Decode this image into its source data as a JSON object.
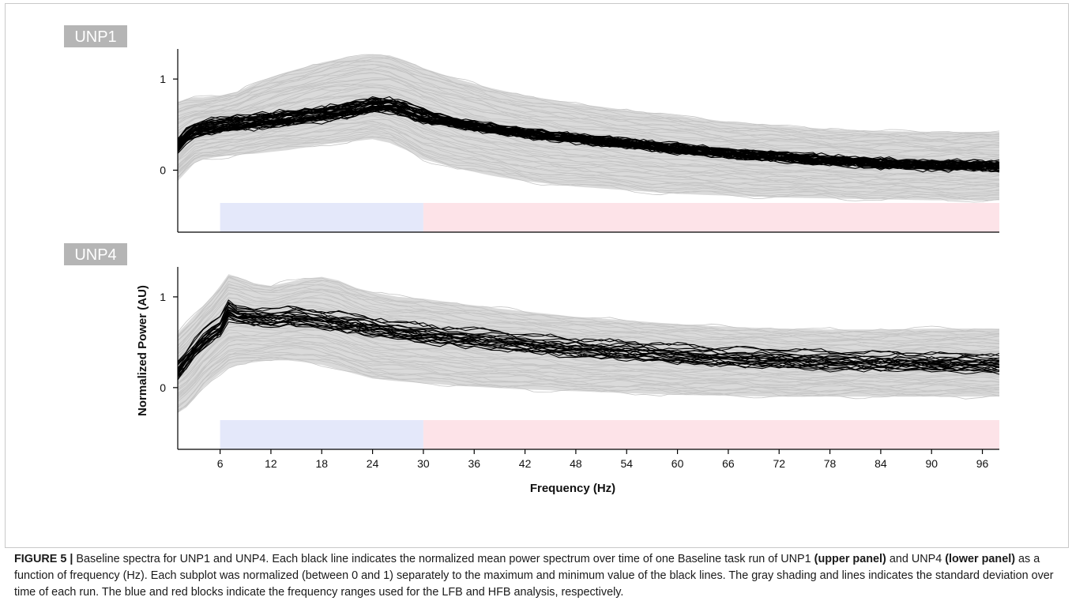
{
  "figure": {
    "panels": [
      "UNP1",
      "UNP4"
    ]
  },
  "caption": {
    "label": "FIGURE 5 |",
    "t1": " Baseline spectra for UNP1 and UNP4. Each black line indicates the normalized mean power spectrum over time of one Baseline task run of UNP1 ",
    "b1": "(upper panel)",
    "t2": " and UNP4 ",
    "b2": "(lower panel)",
    "t3": " as a function of frequency (Hz). Each subplot was normalized (between 0 and 1) separately to the maximum and minimum value of the black lines. The gray shading and lines indicates the standard deviation over time of each run. The blue and red blocks indicate the frequency ranges used for the LFB and HFB analysis, respectively."
  },
  "chart_data": [
    {
      "type": "line",
      "panel_label": "UNP1",
      "xlabel": "",
      "ylabel": "",
      "xlim": [
        1,
        98
      ],
      "ylim": [
        -0.68,
        1.33
      ],
      "yticks": [
        0,
        1
      ],
      "ytick_labels": [
        "0",
        "1"
      ],
      "band_colors": {
        "lfb": "#e4e8fa",
        "hfb": "#fde3e8"
      },
      "bands": [
        {
          "name": "LFB",
          "from": 6,
          "to": 30,
          "color": "#e4e8fa"
        },
        {
          "name": "HFB",
          "from": 30,
          "to": 98,
          "color": "#fde3e8"
        }
      ],
      "run_count": 40,
      "mean_curve": {
        "x": [
          1,
          2,
          3,
          4,
          6,
          8,
          10,
          12,
          14,
          16,
          18,
          20,
          22,
          24,
          26,
          28,
          30,
          34,
          38,
          42,
          48,
          54,
          60,
          66,
          72,
          78,
          84,
          90,
          98
        ],
        "y": [
          0.28,
          0.38,
          0.44,
          0.47,
          0.5,
          0.52,
          0.54,
          0.56,
          0.58,
          0.6,
          0.62,
          0.65,
          0.68,
          0.72,
          0.72,
          0.67,
          0.6,
          0.52,
          0.46,
          0.41,
          0.35,
          0.3,
          0.24,
          0.19,
          0.15,
          0.11,
          0.08,
          0.06,
          0.05
        ]
      },
      "band_sd": {
        "x": [
          1,
          2,
          3,
          4,
          6,
          8,
          10,
          12,
          14,
          16,
          18,
          20,
          22,
          24,
          26,
          28,
          30,
          34,
          38,
          42,
          48,
          54,
          60,
          66,
          72,
          78,
          84,
          90,
          98
        ],
        "upper": [
          0.75,
          0.78,
          0.8,
          0.8,
          0.82,
          0.86,
          0.95,
          1.02,
          1.08,
          1.13,
          1.18,
          1.22,
          1.25,
          1.27,
          1.26,
          1.2,
          1.12,
          1.0,
          0.9,
          0.82,
          0.73,
          0.66,
          0.6,
          0.53,
          0.49,
          0.45,
          0.43,
          0.42,
          0.42
        ],
        "lower": [
          -0.12,
          -0.02,
          0.08,
          0.12,
          0.15,
          0.17,
          0.18,
          0.2,
          0.22,
          0.25,
          0.28,
          0.3,
          0.32,
          0.34,
          0.3,
          0.22,
          0.12,
          0.02,
          -0.06,
          -0.12,
          -0.18,
          -0.22,
          -0.26,
          -0.28,
          -0.3,
          -0.31,
          -0.32,
          -0.33,
          -0.33
        ]
      }
    },
    {
      "type": "line",
      "panel_label": "UNP4",
      "xlabel": "Frequency (Hz)",
      "ylabel": "Normalized Power (AU)",
      "xlim": [
        1,
        98
      ],
      "ylim": [
        -0.68,
        1.33
      ],
      "yticks": [
        0,
        1
      ],
      "ytick_labels": [
        "0",
        "1"
      ],
      "xticks": [
        6,
        12,
        18,
        24,
        30,
        36,
        42,
        48,
        54,
        60,
        66,
        72,
        78,
        84,
        90,
        96
      ],
      "xtick_labels": [
        "6",
        "12",
        "18",
        "24",
        "30",
        "36",
        "42",
        "48",
        "54",
        "60",
        "66",
        "72",
        "78",
        "84",
        "90",
        "96"
      ],
      "band_colors": {
        "lfb": "#e4e8fa",
        "hfb": "#fde3e8"
      },
      "bands": [
        {
          "name": "LFB",
          "from": 6,
          "to": 30,
          "color": "#e4e8fa"
        },
        {
          "name": "HFB",
          "from": 30,
          "to": 98,
          "color": "#fde3e8"
        }
      ],
      "run_count": 22,
      "mean_curve": {
        "x": [
          1,
          2,
          3,
          4,
          5,
          6,
          7,
          8,
          10,
          12,
          14,
          16,
          18,
          20,
          22,
          24,
          27,
          30,
          34,
          38,
          42,
          48,
          54,
          60,
          66,
          72,
          78,
          84,
          90,
          98
        ],
        "y": [
          0.18,
          0.3,
          0.42,
          0.52,
          0.6,
          0.66,
          0.85,
          0.8,
          0.78,
          0.76,
          0.78,
          0.77,
          0.74,
          0.72,
          0.7,
          0.66,
          0.62,
          0.58,
          0.55,
          0.52,
          0.48,
          0.43,
          0.4,
          0.36,
          0.33,
          0.31,
          0.29,
          0.28,
          0.27,
          0.26
        ]
      },
      "band_sd": {
        "x": [
          1,
          2,
          3,
          4,
          5,
          6,
          7,
          8,
          10,
          12,
          14,
          16,
          18,
          20,
          22,
          24,
          27,
          30,
          34,
          38,
          42,
          48,
          54,
          60,
          66,
          72,
          78,
          84,
          90,
          98
        ],
        "upper": [
          0.6,
          0.7,
          0.8,
          0.9,
          1.0,
          1.12,
          1.25,
          1.22,
          1.15,
          1.12,
          1.16,
          1.2,
          1.22,
          1.18,
          1.1,
          1.05,
          1.0,
          0.98,
          0.93,
          0.88,
          0.84,
          0.78,
          0.74,
          0.7,
          0.67,
          0.65,
          0.64,
          0.64,
          0.65,
          0.65
        ],
        "lower": [
          -0.28,
          -0.22,
          -0.12,
          0.0,
          0.08,
          0.15,
          0.22,
          0.25,
          0.28,
          0.3,
          0.3,
          0.28,
          0.25,
          0.2,
          0.15,
          0.1,
          0.07,
          0.05,
          0.02,
          0.0,
          -0.02,
          -0.04,
          -0.06,
          -0.08,
          -0.09,
          -0.1,
          -0.1,
          -0.1,
          -0.1,
          -0.1
        ]
      }
    }
  ]
}
